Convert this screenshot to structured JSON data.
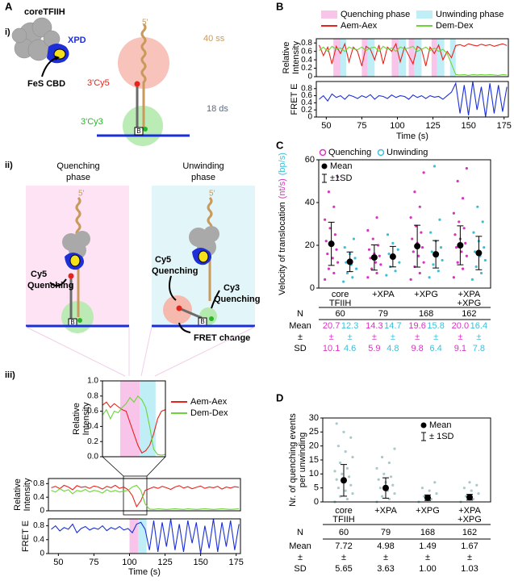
{
  "panel_labels": {
    "A": "A",
    "B": "B",
    "C": "C",
    "D": "D",
    "i": "i)",
    "ii": "ii)",
    "iii": "iii)"
  },
  "diagram": {
    "i": {
      "complex": "coreTFIIH",
      "xpd": "XPD",
      "fes": "FeS CBD",
      "five_prime": "5'",
      "ss": "40 ss",
      "cy5": "3'Cy5",
      "ds": "18 ds",
      "cy3": "3'Cy3",
      "biotin": "B"
    },
    "ii": {
      "quench_title": [
        "Quenching",
        "phase"
      ],
      "unwind_title": [
        "Unwinding",
        "phase"
      ],
      "five_prime": "5'",
      "cy5_quench": [
        "Cy5",
        "Quenching"
      ],
      "cy3_quench": [
        "Cy3",
        "Quenching"
      ],
      "fret": "FRET change",
      "biotin": "B"
    }
  },
  "chart_data": [
    {
      "type": "line",
      "ylabel": [
        "Relative",
        "Intensity"
      ],
      "x": [
        97,
        98,
        99,
        100,
        101,
        102,
        103,
        104,
        105,
        106,
        107,
        108,
        109,
        110,
        111,
        112,
        113
      ],
      "xlim": [
        97,
        113
      ],
      "ylim": [
        0,
        1
      ],
      "yticks": [
        {
          "value": 0,
          "label": "0.0"
        },
        0.2,
        0.4,
        0.6,
        0.8,
        {
          "value": 1,
          "label": "1.0"
        }
      ],
      "phases": [
        {
          "color": "#f8c4ea",
          "spans": [
            [
              101.5,
              106.5
            ]
          ]
        },
        {
          "color": "#bfeef7",
          "spans": [
            [
              106.5,
              110.5
            ]
          ]
        }
      ],
      "series": [
        {
          "name": "Aem-Aex",
          "color": "#e8231b",
          "values": [
            0.68,
            0.72,
            0.65,
            0.7,
            0.66,
            0.62,
            0.6,
            0.45,
            0.3,
            0.15,
            0.05,
            0.08,
            0.15,
            0.3,
            0.5,
            0.6,
            0.62
          ]
        },
        {
          "name": "Dem-Dex",
          "color": "#6cd43a",
          "values": [
            0.55,
            0.62,
            0.5,
            0.6,
            0.58,
            0.65,
            0.7,
            0.78,
            0.72,
            0.8,
            0.75,
            0.65,
            0.4,
            0.1,
            0.03,
            0.02,
            0.03
          ]
        }
      ]
    },
    {
      "type": "line",
      "ylabel": [
        "Relative",
        "Intensity"
      ],
      "x": [
        45,
        48,
        51,
        54,
        57,
        60,
        63,
        66,
        69,
        72,
        75,
        78,
        81,
        84,
        87,
        90,
        93,
        96,
        99,
        102,
        105,
        108,
        111,
        114,
        117,
        120,
        123,
        126,
        129,
        132,
        135,
        138,
        141,
        144,
        147,
        150,
        153,
        156,
        159,
        162,
        165,
        168,
        171,
        174,
        177
      ],
      "xlim": [
        43,
        178
      ],
      "ylim": [
        0,
        0.95
      ],
      "yticks": [
        0,
        0.4,
        0.8
      ],
      "series": [
        {
          "color": "#e8231b",
          "values": [
            0.68,
            0.72,
            0.65,
            0.75,
            0.7,
            0.62,
            0.74,
            0.69,
            0.71,
            0.66,
            0.73,
            0.7,
            0.64,
            0.72,
            0.68,
            0.75,
            0.66,
            0.7,
            0.62,
            0.45,
            0.12,
            0.3,
            0.6,
            0.65,
            0.7,
            0.66,
            0.72,
            0.68,
            0.63,
            0.7,
            0.74,
            0.67,
            0.71,
            0.65,
            0.69,
            0.73,
            0.66,
            0.7,
            0.68,
            0.72,
            0.64,
            0.7,
            0.67,
            0.71,
            0.69
          ]
        },
        {
          "color": "#6cd43a",
          "values": [
            0.6,
            0.55,
            0.65,
            0.58,
            0.62,
            0.5,
            0.6,
            0.57,
            0.63,
            0.55,
            0.6,
            0.58,
            0.52,
            0.62,
            0.56,
            0.6,
            0.55,
            0.58,
            0.6,
            0.7,
            0.75,
            0.6,
            0.2,
            0.05,
            0.04,
            0.06,
            0.05,
            0.04,
            0.05,
            0.06,
            0.05,
            0.04,
            0.06,
            0.05,
            0.04,
            0.05,
            0.06,
            0.05,
            0.04,
            0.05,
            0.06,
            0.05,
            0.04,
            0.05,
            0.06
          ]
        }
      ]
    },
    {
      "type": "line",
      "ylabel": "FRET E",
      "xlabel": "Time (s)",
      "x": [
        45,
        48,
        51,
        54,
        57,
        60,
        63,
        66,
        69,
        72,
        75,
        78,
        81,
        84,
        87,
        90,
        93,
        96,
        99,
        102,
        105,
        108,
        111,
        114,
        117,
        120,
        123,
        126,
        129,
        132,
        135,
        138,
        141,
        144,
        147,
        150,
        153,
        156,
        159,
        162,
        165,
        168,
        171,
        174,
        177
      ],
      "xlim": [
        43,
        178
      ],
      "ylim": [
        0,
        1
      ],
      "yticks": [
        0,
        0.4,
        0.8
      ],
      "xticks": [
        50,
        75,
        100,
        125,
        150,
        175
      ],
      "phases": [
        {
          "color": "#f8c4ea",
          "spans": [
            [
              100,
              106
            ]
          ]
        },
        {
          "color": "#bfeef7",
          "spans": [
            [
              106,
              112
            ]
          ]
        }
      ],
      "series": [
        {
          "color": "#1a2fd8",
          "values": [
            0.7,
            0.8,
            0.65,
            0.75,
            0.7,
            0.85,
            0.6,
            0.72,
            0.78,
            0.68,
            0.74,
            0.7,
            0.8,
            0.66,
            0.75,
            0.7,
            0.78,
            0.68,
            0.72,
            0.6,
            0.85,
            0.9,
            0.7,
            0.1,
            0.95,
            0.05,
            0.9,
            0.2,
            1,
            0.1,
            0.85,
            0.05,
            0.95,
            0.3,
            0.9,
            0,
            0.8,
            0.15,
            1,
            0.05,
            0.9,
            0.2,
            0.95,
            0.1,
            0.85
          ]
        }
      ]
    },
    {
      "type": "line",
      "ylabel": [
        "Relative",
        "Intensity"
      ],
      "x": [
        45,
        48,
        51,
        54,
        57,
        60,
        63,
        66,
        69,
        72,
        75,
        78,
        81,
        84,
        87,
        90,
        93,
        96,
        99,
        102,
        105,
        108,
        111,
        114,
        117,
        120,
        123,
        126,
        129,
        132,
        135,
        138,
        141,
        144,
        147,
        150,
        153,
        156,
        159,
        162,
        165,
        168,
        171,
        174,
        177
      ],
      "xlim": [
        43,
        178
      ],
      "ylim": [
        0,
        0.9
      ],
      "yticks": [
        0,
        0.2,
        0.4,
        0.6,
        0.8
      ],
      "phases": [
        {
          "name": "Quenching phase",
          "color": "#f8c4ea",
          "spans": [
            [
              55,
              60
            ],
            [
              75,
              79
            ],
            [
              96,
              101
            ],
            [
              108,
              112
            ],
            [
              124,
              128
            ]
          ]
        },
        {
          "name": "Unwinding phase",
          "color": "#bfeef7",
          "spans": [
            [
              60,
              64
            ],
            [
              79,
              84
            ],
            [
              101,
              106
            ],
            [
              112,
              117
            ],
            [
              128,
              133
            ],
            [
              137,
              141
            ]
          ]
        }
      ],
      "series": [
        {
          "name": "Aem-Aex",
          "color": "#e8231b",
          "values": [
            0.75,
            0.5,
            0.7,
            0.3,
            0.72,
            0.55,
            0.78,
            0.35,
            0.7,
            0.6,
            0.25,
            0.72,
            0.65,
            0.4,
            0.75,
            0.3,
            0.7,
            0.6,
            0.78,
            0.35,
            0.7,
            0.5,
            0.3,
            0.72,
            0.65,
            0.25,
            0.7,
            0.55,
            0.75,
            0.4,
            0.6,
            0.45,
            0.74,
            0.76,
            0.72,
            0.78,
            0.75,
            0.73,
            0.77,
            0.74,
            0.76,
            0.72,
            0.75,
            0.78,
            0.74
          ]
        },
        {
          "name": "Dem-Dex",
          "color": "#6cd43a",
          "values": [
            0.62,
            0.7,
            0.6,
            0.72,
            0.65,
            0.68,
            0.6,
            0.7,
            0.66,
            0.64,
            0.7,
            0.62,
            0.68,
            0.7,
            0.6,
            0.72,
            0.65,
            0.68,
            0.6,
            0.7,
            0.66,
            0.68,
            0.72,
            0.6,
            0.65,
            0.7,
            0.62,
            0.68,
            0.6,
            0.65,
            0.55,
            0.3,
            0.05,
            0.04,
            0.05,
            0.03,
            0.05,
            0.04,
            0.05,
            0.04,
            0.05,
            0.04,
            0.03,
            0.05,
            0.04
          ]
        }
      ]
    },
    {
      "type": "line",
      "ylabel": "FRET E",
      "xlabel": "Time (s)",
      "x": [
        45,
        48,
        51,
        54,
        57,
        60,
        63,
        66,
        69,
        72,
        75,
        78,
        81,
        84,
        87,
        90,
        93,
        96,
        99,
        102,
        105,
        108,
        111,
        114,
        117,
        120,
        123,
        126,
        129,
        132,
        135,
        138,
        141,
        144,
        147,
        150,
        153,
        156,
        159,
        162,
        165,
        168,
        171,
        174,
        177
      ],
      "xlim": [
        43,
        178
      ],
      "ylim": [
        0,
        1
      ],
      "yticks": [
        0,
        0.2,
        0.4,
        0.6,
        0.8
      ],
      "xticks": [
        50,
        75,
        100,
        125,
        150,
        175
      ],
      "series": [
        {
          "color": "#1a2fd8",
          "values": [
            0.5,
            0.6,
            0.45,
            0.65,
            0.55,
            0.6,
            0.5,
            0.62,
            0.58,
            0.52,
            0.6,
            0.55,
            0.63,
            0.5,
            0.6,
            0.58,
            0.52,
            0.62,
            0.55,
            0.6,
            0.58,
            0.5,
            0.62,
            0.55,
            0.6,
            0.52,
            0.6,
            0.56,
            0.58,
            0.5,
            0.6,
            0.7,
            0.95,
            0.1,
            0.9,
            0.05,
            1,
            0.2,
            0.85,
            0,
            0.95,
            0.1,
            0.9,
            0.15,
            0.85
          ]
        }
      ]
    },
    {
      "type": "errorbar",
      "ylabel": "Velocity of translocation",
      "categories": [
        [
          "core",
          "TFIIH"
        ],
        [
          "+XPA"
        ],
        [
          "+XPG"
        ],
        [
          "+XPA",
          "+XPG"
        ]
      ],
      "ylim": [
        0,
        60
      ],
      "yticks": [
        0,
        20,
        40,
        60
      ],
      "n": [
        60,
        79,
        168,
        162
      ],
      "row_labels": [
        "N",
        "Mean",
        "±",
        "SD"
      ],
      "mean_label": "Mean",
      "sd_label": "±1SD",
      "series": [
        {
          "name": "Quenching",
          "unit": "(nt/s)",
          "color": "#d735c0",
          "values": [
            20.7,
            14.3,
            19.6,
            20
          ],
          "value_labels": [
            "20.7",
            "14.3",
            "19.6",
            "20.0"
          ],
          "errors": [
            10.1,
            5.9,
            9.8,
            9.1
          ],
          "points": [
            [
              4,
              7,
              9,
              12,
              14,
              16,
              18,
              20,
              22,
              25,
              28,
              32,
              38,
              45,
              52
            ],
            [
              5,
              7,
              9,
              11,
              12,
              14,
              15,
              16,
              18,
              20,
              23,
              27,
              33
            ],
            [
              4,
              7,
              10,
              12,
              15,
              17,
              19,
              21,
              23,
              26,
              29,
              33,
              38,
              45,
              54
            ],
            [
              5,
              9,
              12,
              15,
              17,
              19,
              21,
              23,
              25,
              28,
              31,
              35,
              42,
              50,
              56
            ]
          ]
        },
        {
          "name": "Unwinding",
          "unit": "(bp/s)",
          "color": "#3dbfd8",
          "values": [
            12.3,
            14.7,
            15.8,
            16.4
          ],
          "errors": [
            4.6,
            4.8,
            6.4,
            7.8
          ],
          "points": [
            [
              3,
              5,
              7,
              9,
              11,
              12,
              14,
              16,
              19,
              23
            ],
            [
              6,
              8,
              10,
              12,
              14,
              16,
              18,
              21,
              25
            ],
            [
              5,
              8,
              11,
              13,
              15,
              17,
              19,
              22,
              26,
              32,
              57
            ],
            [
              4,
              7,
              10,
              13,
              15,
              17,
              19,
              22,
              26,
              31,
              38
            ]
          ]
        }
      ]
    },
    {
      "type": "errorbar",
      "ylabel": [
        "Nr. of quenching events",
        "per unwinding"
      ],
      "categories": [
        [
          "core",
          "TFIIH"
        ],
        [
          "+XPA"
        ],
        [
          "+XPG"
        ],
        [
          "+XPA",
          "+XPG"
        ]
      ],
      "ylim": [
        0,
        30
      ],
      "yticks": [
        0,
        5,
        10,
        15,
        20,
        25,
        30
      ],
      "n": [
        60,
        79,
        168,
        162
      ],
      "row_labels": [
        "N",
        "Mean",
        "±",
        "SD"
      ],
      "mean_label": "Mean",
      "sd_label": "± 1SD",
      "series": [
        {
          "color": "#a9c9cc",
          "values": [
            7.72,
            4.98,
            1.49,
            1.67
          ],
          "errors": [
            5.65,
            3.63,
            1,
            1.03
          ],
          "error_labels": [
            "5.65",
            "3.63",
            "1.00",
            "1.03"
          ],
          "points": [
            [
              0,
              1,
              2,
              3,
              4,
              5,
              6,
              7,
              8,
              9,
              10,
              11,
              12,
              14,
              16,
              18,
              20,
              23,
              25,
              28
            ],
            [
              0,
              1,
              2,
              3,
              4,
              5,
              6,
              7,
              8,
              9,
              10,
              12,
              14,
              16,
              19
            ],
            [
              0,
              1,
              2,
              3,
              4,
              5,
              7
            ],
            [
              0,
              1,
              2,
              3,
              4,
              5,
              6,
              7
            ]
          ]
        }
      ]
    }
  ]
}
